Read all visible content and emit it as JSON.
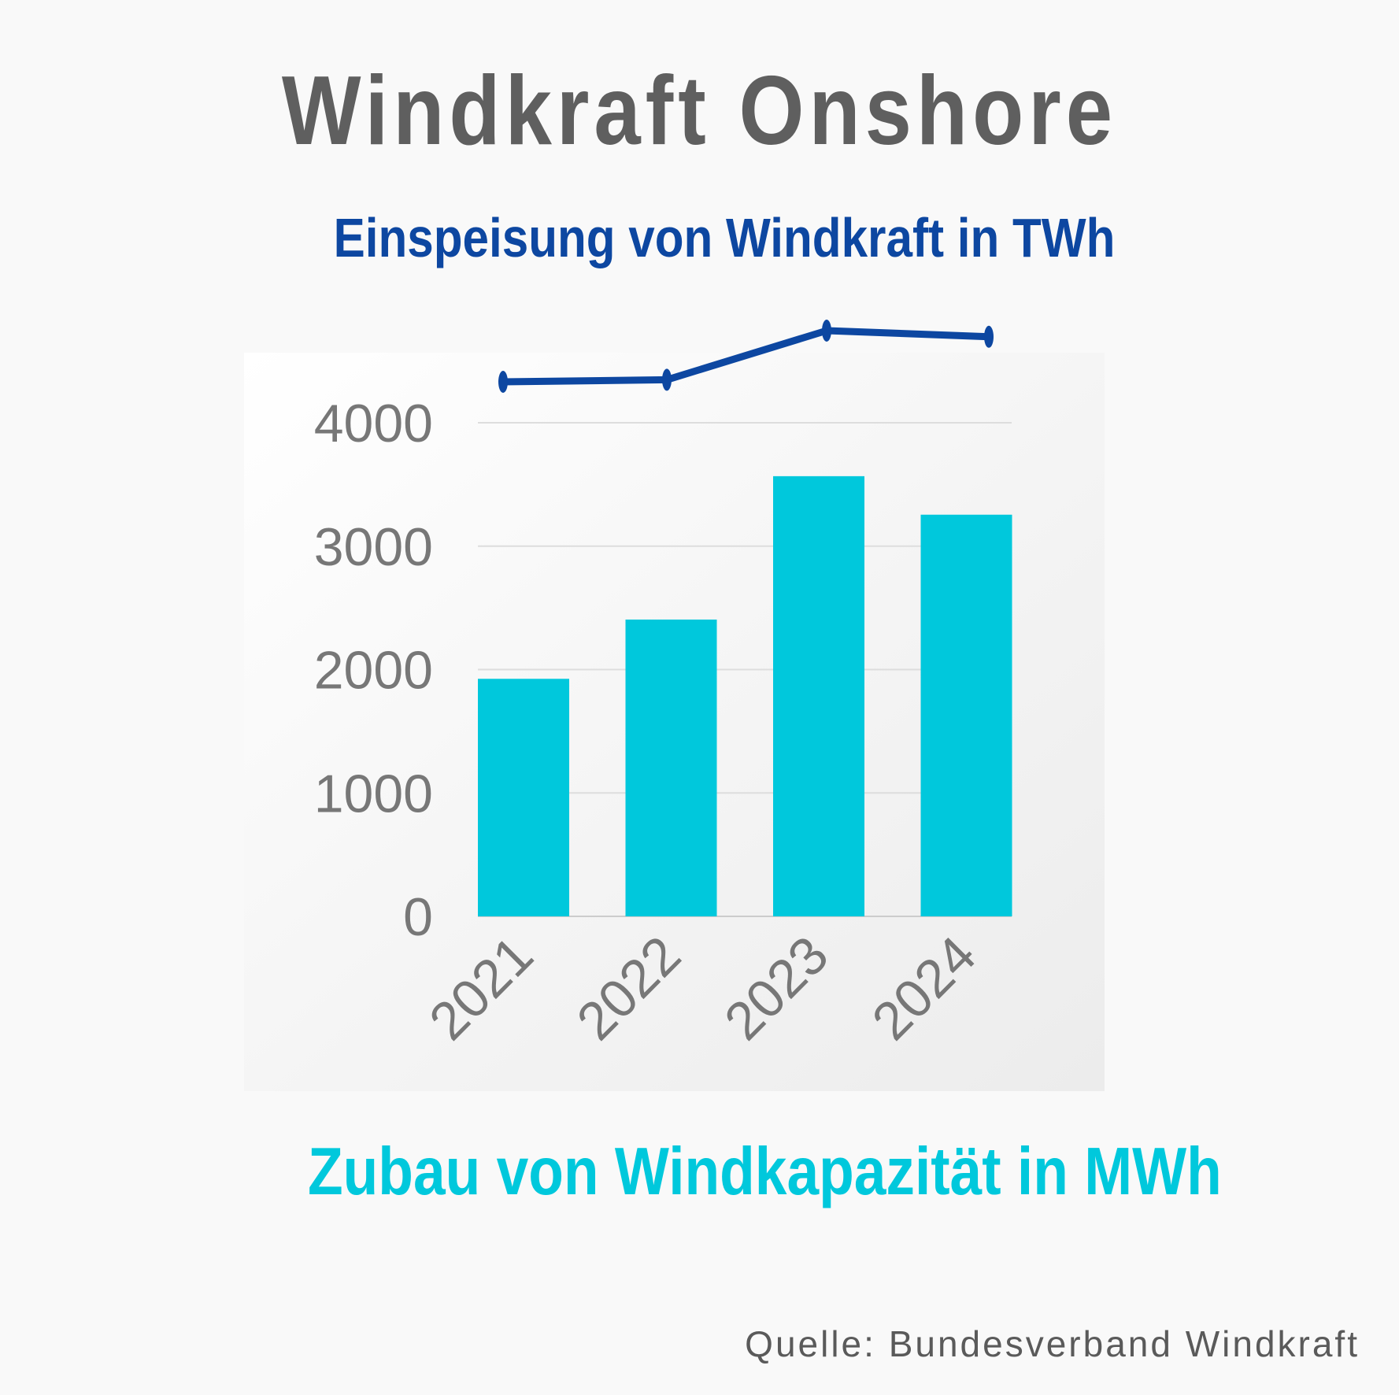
{
  "header": {
    "title": "Windkraft Onshore",
    "line_series_label": "Einspeisung von Windkraft in TWh",
    "bar_series_label": "Zubau von Windkapazität in MWh"
  },
  "footer": {
    "source": "Quelle: Bundesverband Windkraft"
  },
  "colors": {
    "bar": "#00c8dc",
    "line": "#0d47a1",
    "title": "#5f5f5f",
    "grid": "#dddddd"
  },
  "chart_data": {
    "type": "bar",
    "categories": [
      "2021",
      "2022",
      "2023",
      "2024"
    ],
    "series": [
      {
        "name": "Zubau von Windkapazität in MWh",
        "type": "bar",
        "values": [
          1925,
          2405,
          3567,
          3255
        ]
      },
      {
        "name": "Einspeisung von Windkraft in TWh",
        "type": "line",
        "values": [
          114,
          115,
          139,
          136
        ],
        "note_axis": "no axis shown"
      }
    ],
    "ylim": [
      0,
      4000
    ],
    "yticks": [
      0,
      1000,
      2000,
      3000,
      4000
    ],
    "grid": true,
    "legend": "none"
  }
}
